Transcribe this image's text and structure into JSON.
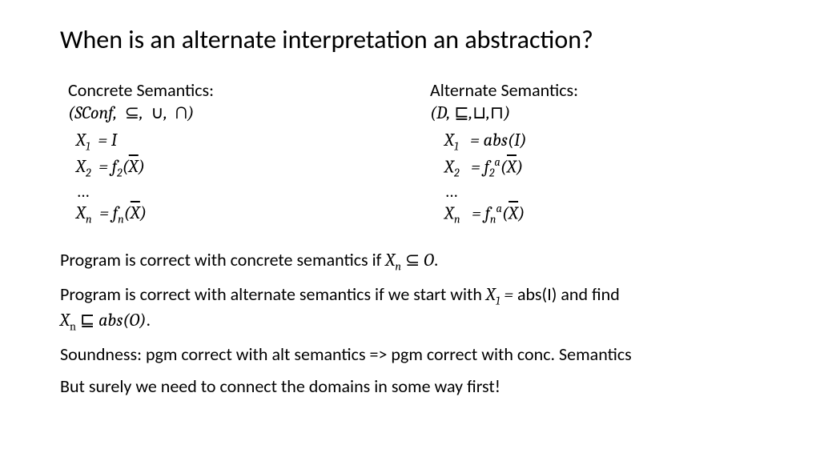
{
  "slide": {
    "title": "When is an alternate interpretation an abstraction?",
    "background_color": "#ffffff",
    "text_color": "#000000",
    "title_fontsize": 32,
    "body_fontsize": 22,
    "math_font": "Cambria Math",
    "body_font": "Calibri"
  },
  "concrete": {
    "header": "Concrete Semantics:",
    "lattice_math": "(SConf,  ⊆,  ∪,  ∩)",
    "eq1": "X₁  = I",
    "eq2": "X₂  = f₂(X̄)",
    "dots": "…",
    "eqn": "Xₙ  = fₙ(X̄)"
  },
  "alternate": {
    "header": "Alternate Semantics:",
    "lattice_math": "(D, ⊑,⊔,⊓)",
    "eq1": "X₁   = abs(I)",
    "eq2": "X₂   = f₂ᵃ(X̄)",
    "dots": "…",
    "eqn": "Xₙ   = fₙᵃ(X̄)"
  },
  "body": {
    "line1_a": "Program is correct with concrete semantics if ",
    "line1_math": "Xₙ ⊆ O.",
    "line2_a": "Program is correct with alternate semantics if we start with ",
    "line2_math1": "X₁ = ",
    "line2_b": "abs(I) and find ",
    "line2_math2": "Xₙ ⊑ abs(O).",
    "line3": "Soundness: pgm correct with alt semantics => pgm correct with conc. Semantics",
    "line4": "But surely we need to connect the domains in some way first!"
  }
}
